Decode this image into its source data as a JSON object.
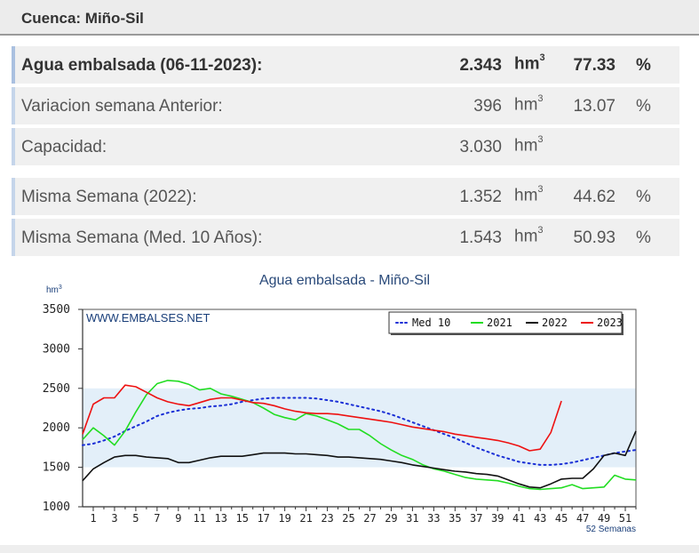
{
  "header": {
    "title": "Cuenca: Miño-Sil"
  },
  "rows": [
    {
      "label": "Agua embalsada (06-11-2023):",
      "value": "2.343",
      "unit": "hm",
      "unit_sup": "3",
      "pct": "77.33",
      "pct_sign": "%",
      "bold": true
    },
    {
      "label": "Variacion semana Anterior:",
      "value": "396",
      "unit": "hm",
      "unit_sup": "3",
      "pct": "13.07",
      "pct_sign": "%",
      "bold": false
    },
    {
      "label": "Capacidad:",
      "value": "3.030",
      "unit": "hm",
      "unit_sup": "3",
      "pct": "",
      "pct_sign": "",
      "bold": false
    },
    {
      "label": "Misma Semana (2022):",
      "value": "1.352",
      "unit": "hm",
      "unit_sup": "3",
      "pct": "44.62",
      "pct_sign": "%",
      "bold": false
    },
    {
      "label": "Misma Semana (Med. 10 Años):",
      "value": "1.543",
      "unit": "hm",
      "unit_sup": "3",
      "pct": "50.93",
      "pct_sign": "%",
      "bold": false
    }
  ],
  "chart_data": {
    "type": "line",
    "title": "Agua embalsada - Miño-Sil",
    "ylabel": "hm",
    "ylabel_sup": "3",
    "watermark": "WWW.EMBALSES.NET",
    "xlabel_note": "52 Semanas",
    "ylim": [
      1000,
      3500
    ],
    "yticks": [
      1000,
      1500,
      2000,
      2500,
      3000,
      3500
    ],
    "xlim": [
      1,
      52
    ],
    "xticks": [
      1,
      3,
      5,
      7,
      9,
      11,
      13,
      15,
      17,
      19,
      21,
      23,
      25,
      27,
      29,
      31,
      33,
      35,
      37,
      39,
      41,
      43,
      45,
      47,
      49,
      51
    ],
    "bands": [
      [
        1500,
        2500
      ]
    ],
    "legend_position": "top-right",
    "colors": {
      "band": "#e3eff9",
      "plot_bg": "#ffffff",
      "axis": "#333333",
      "title": "#2a4a7a"
    },
    "series": [
      {
        "name": "Med 10",
        "color": "#1a2fd6",
        "dash": true,
        "x": [
          0,
          1,
          2,
          3,
          4,
          5,
          6,
          7,
          8,
          9,
          10,
          11,
          12,
          13,
          14,
          15,
          16,
          17,
          18,
          19,
          20,
          21,
          22,
          23,
          24,
          25,
          26,
          27,
          28,
          29,
          30,
          31,
          32,
          33,
          34,
          35,
          36,
          37,
          38,
          39,
          40,
          41,
          42,
          43,
          44,
          45,
          46,
          47,
          48,
          49,
          50,
          51,
          52
        ],
        "y": [
          1780,
          1800,
          1840,
          1890,
          1960,
          2020,
          2080,
          2150,
          2190,
          2220,
          2240,
          2250,
          2270,
          2280,
          2300,
          2330,
          2350,
          2370,
          2380,
          2380,
          2380,
          2380,
          2370,
          2350,
          2330,
          2300,
          2270,
          2240,
          2210,
          2170,
          2120,
          2070,
          2020,
          1970,
          1920,
          1870,
          1810,
          1750,
          1700,
          1650,
          1610,
          1570,
          1550,
          1530,
          1530,
          1540,
          1560,
          1590,
          1620,
          1650,
          1680,
          1700,
          1720
        ]
      },
      {
        "name": "2021",
        "color": "#22dd22",
        "dash": false,
        "x": [
          0,
          1,
          2,
          3,
          4,
          5,
          6,
          7,
          8,
          9,
          10,
          11,
          12,
          13,
          14,
          15,
          16,
          17,
          18,
          19,
          20,
          21,
          22,
          23,
          24,
          25,
          26,
          27,
          28,
          29,
          30,
          31,
          32,
          33,
          34,
          35,
          36,
          37,
          38,
          39,
          40,
          41,
          42,
          43,
          44,
          45,
          46,
          47,
          48,
          49,
          50,
          51,
          52
        ],
        "y": [
          1850,
          2000,
          1900,
          1780,
          1960,
          2200,
          2420,
          2560,
          2600,
          2590,
          2550,
          2480,
          2500,
          2430,
          2400,
          2360,
          2320,
          2250,
          2170,
          2130,
          2100,
          2180,
          2150,
          2100,
          2050,
          1980,
          1980,
          1900,
          1800,
          1720,
          1650,
          1600,
          1530,
          1480,
          1450,
          1410,
          1370,
          1350,
          1340,
          1330,
          1300,
          1260,
          1230,
          1220,
          1230,
          1240,
          1280,
          1230,
          1240,
          1250,
          1400,
          1350,
          1340
        ]
      },
      {
        "name": "2022",
        "color": "#111111",
        "dash": false,
        "x": [
          0,
          1,
          2,
          3,
          4,
          5,
          6,
          7,
          8,
          9,
          10,
          11,
          12,
          13,
          14,
          15,
          16,
          17,
          18,
          19,
          20,
          21,
          22,
          23,
          24,
          25,
          26,
          27,
          28,
          29,
          30,
          31,
          32,
          33,
          34,
          35,
          36,
          37,
          38,
          39,
          40,
          41,
          42,
          43,
          44,
          45,
          46,
          47,
          48,
          49,
          50,
          51,
          52
        ],
        "y": [
          1330,
          1480,
          1560,
          1630,
          1650,
          1650,
          1630,
          1620,
          1610,
          1560,
          1560,
          1590,
          1620,
          1640,
          1640,
          1640,
          1660,
          1680,
          1680,
          1680,
          1670,
          1670,
          1660,
          1650,
          1630,
          1630,
          1620,
          1610,
          1600,
          1580,
          1560,
          1530,
          1510,
          1490,
          1470,
          1450,
          1440,
          1420,
          1410,
          1390,
          1340,
          1290,
          1250,
          1240,
          1290,
          1350,
          1360,
          1360,
          1480,
          1650,
          1680,
          1650,
          1960
        ]
      },
      {
        "name": "2023",
        "color": "#ee1111",
        "dash": false,
        "x": [
          0,
          1,
          2,
          3,
          4,
          5,
          6,
          7,
          8,
          9,
          10,
          11,
          12,
          13,
          14,
          15,
          16,
          17,
          18,
          19,
          20,
          21,
          22,
          23,
          24,
          25,
          26,
          27,
          28,
          29,
          30,
          31,
          32,
          33,
          34,
          35,
          36,
          37,
          38,
          39,
          40,
          41,
          42,
          43,
          44,
          45
        ],
        "y": [
          1920,
          2300,
          2380,
          2380,
          2540,
          2520,
          2450,
          2380,
          2330,
          2300,
          2280,
          2320,
          2360,
          2380,
          2380,
          2350,
          2320,
          2310,
          2280,
          2240,
          2210,
          2190,
          2180,
          2180,
          2170,
          2150,
          2130,
          2110,
          2090,
          2070,
          2040,
          2010,
          1990,
          1970,
          1950,
          1920,
          1900,
          1880,
          1860,
          1840,
          1810,
          1770,
          1710,
          1730,
          1940,
          2340
        ]
      }
    ]
  }
}
